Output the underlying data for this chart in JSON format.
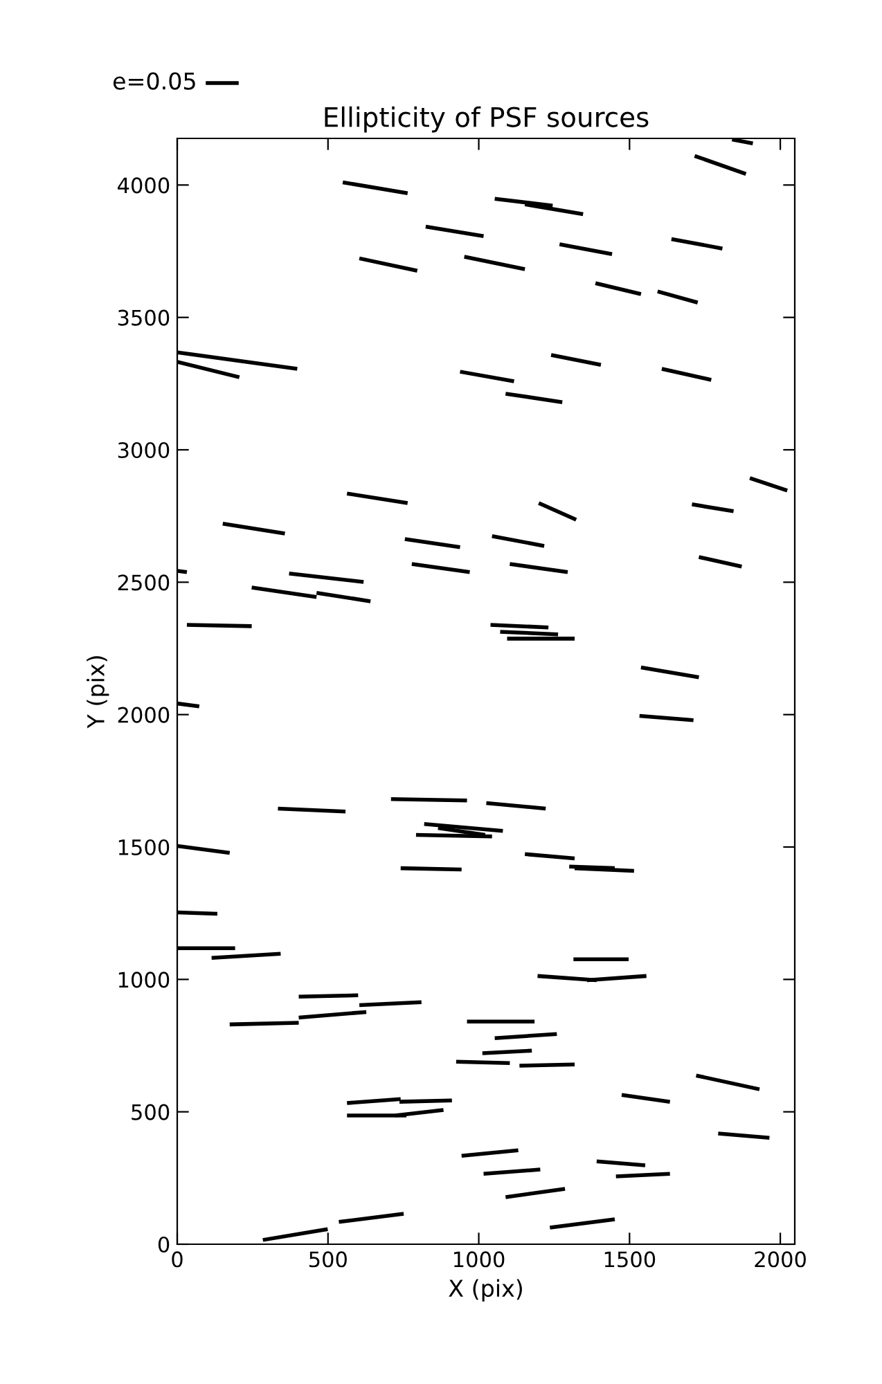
{
  "chart_data": {
    "type": "line",
    "title": "Ellipticity of PSF sources",
    "xlabel": "X (pix)",
    "ylabel": "Y (pix)",
    "annotations": [
      "e=0.05"
    ],
    "color": "#000000",
    "xlim": [
      0,
      2048
    ],
    "ylim": [
      0,
      4176
    ],
    "xticks": [
      0,
      500,
      1000,
      1500,
      2000
    ],
    "yticks": [
      0,
      500,
      1000,
      1500,
      2000,
      2500,
      3000,
      3500,
      4000
    ],
    "grid": false,
    "marker": "none",
    "line_style": "solid",
    "series": [
      {
        "x": [
          1840,
          1909
        ],
        "values": [
          4172,
          4157
        ]
      },
      {
        "x": [
          1716,
          1886
        ],
        "values": [
          4110,
          4042
        ]
      },
      {
        "x": [
          549,
          764
        ],
        "values": [
          4010,
          3969
        ]
      },
      {
        "x": [
          1053,
          1245
        ],
        "values": [
          3948,
          3922
        ]
      },
      {
        "x": [
          1153,
          1346
        ],
        "values": [
          3927,
          3890
        ]
      },
      {
        "x": [
          824,
          1016
        ],
        "values": [
          3843,
          3807
        ]
      },
      {
        "x": [
          1268,
          1442
        ],
        "values": [
          3776,
          3739
        ]
      },
      {
        "x": [
          1639,
          1808
        ],
        "values": [
          3796,
          3760
        ]
      },
      {
        "x": [
          604,
          796
        ],
        "values": [
          3723,
          3676
        ]
      },
      {
        "x": [
          952,
          1153
        ],
        "values": [
          3729,
          3682
        ]
      },
      {
        "x": [
          1387,
          1538
        ],
        "values": [
          3629,
          3588
        ]
      },
      {
        "x": [
          1593,
          1726
        ],
        "values": [
          3598,
          3556
        ]
      },
      {
        "x": [
          0,
          398
        ],
        "values": [
          3368,
          3306
        ]
      },
      {
        "x": [
          0,
          206
        ],
        "values": [
          3332,
          3274
        ]
      },
      {
        "x": [
          938,
          1117
        ],
        "values": [
          3295,
          3259
        ]
      },
      {
        "x": [
          1089,
          1277
        ],
        "values": [
          3212,
          3180
        ]
      },
      {
        "x": [
          1240,
          1405
        ],
        "values": [
          3358,
          3321
        ]
      },
      {
        "x": [
          1607,
          1771
        ],
        "values": [
          3306,
          3264
        ]
      },
      {
        "x": [
          563,
          764
        ],
        "values": [
          2835,
          2799
        ]
      },
      {
        "x": [
          151,
          357
        ],
        "values": [
          2721,
          2684
        ]
      },
      {
        "x": [
          1199,
          1323
        ],
        "values": [
          2799,
          2736
        ]
      },
      {
        "x": [
          1707,
          1845
        ],
        "values": [
          2794,
          2768
        ]
      },
      {
        "x": [
          1899,
          2023
        ],
        "values": [
          2893,
          2846
        ]
      },
      {
        "x": [
          755,
          938
        ],
        "values": [
          2663,
          2632
        ]
      },
      {
        "x": [
          1044,
          1217
        ],
        "values": [
          2674,
          2637
        ]
      },
      {
        "x": [
          0,
          32
        ],
        "values": [
          2543,
          2538
        ]
      },
      {
        "x": [
          371,
          618
        ],
        "values": [
          2533,
          2501
        ]
      },
      {
        "x": [
          778,
          970
        ],
        "values": [
          2569,
          2538
        ]
      },
      {
        "x": [
          1103,
          1295
        ],
        "values": [
          2569,
          2538
        ]
      },
      {
        "x": [
          1730,
          1872
        ],
        "values": [
          2595,
          2559
        ]
      },
      {
        "x": [
          247,
          462
        ],
        "values": [
          2480,
          2444
        ]
      },
      {
        "x": [
          462,
          641
        ],
        "values": [
          2460,
          2428
        ]
      },
      {
        "x": [
          32,
          247
        ],
        "values": [
          2339,
          2334
        ]
      },
      {
        "x": [
          1039,
          1231
        ],
        "values": [
          2339,
          2329
        ]
      },
      {
        "x": [
          1071,
          1263
        ],
        "values": [
          2313,
          2303
        ]
      },
      {
        "x": [
          1094,
          1318
        ],
        "values": [
          2287,
          2287
        ]
      },
      {
        "x": [
          1538,
          1730
        ],
        "values": [
          2178,
          2141
        ]
      },
      {
        "x": [
          1533,
          1712
        ],
        "values": [
          1995,
          1979
        ]
      },
      {
        "x": [
          0,
          73
        ],
        "values": [
          2042,
          2031
        ]
      },
      {
        "x": [
          334,
          558
        ],
        "values": [
          1645,
          1634
        ]
      },
      {
        "x": [
          709,
          961
        ],
        "values": [
          1681,
          1676
        ]
      },
      {
        "x": [
          1025,
          1222
        ],
        "values": [
          1666,
          1645
        ]
      },
      {
        "x": [
          819,
          1080
        ],
        "values": [
          1587,
          1561
        ]
      },
      {
        "x": [
          865,
          1021
        ],
        "values": [
          1572,
          1546
        ]
      },
      {
        "x": [
          792,
          1044
        ],
        "values": [
          1546,
          1540
        ]
      },
      {
        "x": [
          0,
          174
        ],
        "values": [
          1504,
          1478
        ]
      },
      {
        "x": [
          1153,
          1318
        ],
        "values": [
          1473,
          1457
        ]
      },
      {
        "x": [
          1300,
          1451
        ],
        "values": [
          1426,
          1420
        ]
      },
      {
        "x": [
          1318,
          1515
        ],
        "values": [
          1420,
          1410
        ]
      },
      {
        "x": [
          741,
          943
        ],
        "values": [
          1420,
          1415
        ]
      },
      {
        "x": [
          0,
          133
        ],
        "values": [
          1253,
          1248
        ]
      },
      {
        "x": [
          0,
          192
        ],
        "values": [
          1118,
          1118
        ]
      },
      {
        "x": [
          114,
          343
        ],
        "values": [
          1081,
          1097
        ]
      },
      {
        "x": [
          1314,
          1497
        ],
        "values": [
          1076,
          1076
        ]
      },
      {
        "x": [
          1195,
          1391
        ],
        "values": [
          1013,
          997
        ]
      },
      {
        "x": [
          1359,
          1556
        ],
        "values": [
          997,
          1013
        ]
      },
      {
        "x": [
          403,
          600
        ],
        "values": [
          935,
          940
        ]
      },
      {
        "x": [
          604,
          810
        ],
        "values": [
          903,
          914
        ]
      },
      {
        "x": [
          403,
          627
        ],
        "values": [
          856,
          877
        ]
      },
      {
        "x": [
          174,
          403
        ],
        "values": [
          830,
          836
        ]
      },
      {
        "x": [
          961,
          1185
        ],
        "values": [
          841,
          841
        ]
      },
      {
        "x": [
          1053,
          1259
        ],
        "values": [
          778,
          794
        ]
      },
      {
        "x": [
          1012,
          1176
        ],
        "values": [
          721,
          731
        ]
      },
      {
        "x": [
          925,
          1103
        ],
        "values": [
          689,
          684
        ]
      },
      {
        "x": [
          1135,
          1318
        ],
        "values": [
          674,
          679
        ]
      },
      {
        "x": [
          1721,
          1931
        ],
        "values": [
          637,
          585
        ]
      },
      {
        "x": [
          563,
          741
        ],
        "values": [
          533,
          548
        ]
      },
      {
        "x": [
          737,
          911
        ],
        "values": [
          538,
          543
        ]
      },
      {
        "x": [
          563,
          760
        ],
        "values": [
          486,
          486
        ]
      },
      {
        "x": [
          723,
          883
        ],
        "values": [
          486,
          507
        ]
      },
      {
        "x": [
          1474,
          1634
        ],
        "values": [
          564,
          538
        ]
      },
      {
        "x": [
          1794,
          1964
        ],
        "values": [
          418,
          402
        ]
      },
      {
        "x": [
          943,
          1131
        ],
        "values": [
          334,
          355
        ]
      },
      {
        "x": [
          1391,
          1552
        ],
        "values": [
          313,
          298
        ]
      },
      {
        "x": [
          1016,
          1204
        ],
        "values": [
          266,
          282
        ]
      },
      {
        "x": [
          1455,
          1634
        ],
        "values": [
          256,
          266
        ]
      },
      {
        "x": [
          1089,
          1286
        ],
        "values": [
          178,
          209
        ]
      },
      {
        "x": [
          1236,
          1451
        ],
        "values": [
          63,
          94
        ]
      },
      {
        "x": [
          284,
          499
        ],
        "values": [
          16,
          57
        ]
      },
      {
        "x": [
          536,
          751
        ],
        "values": [
          84,
          115
        ]
      }
    ]
  }
}
